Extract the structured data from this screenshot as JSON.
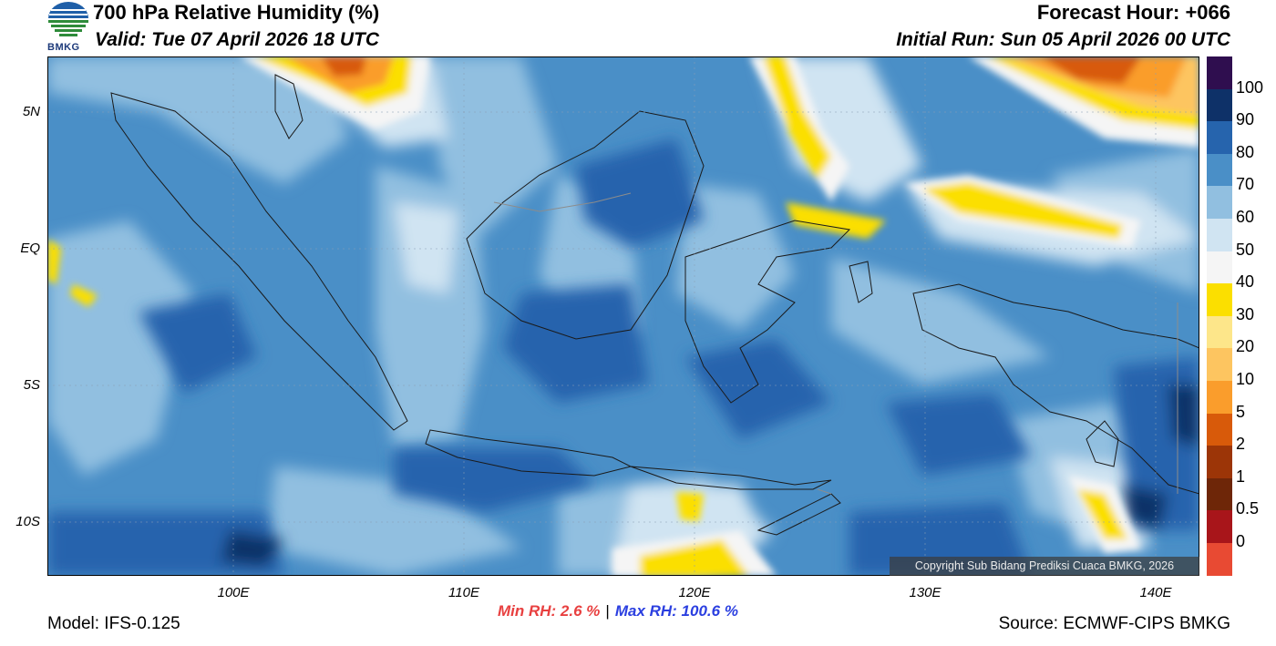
{
  "header": {
    "title": "700 hPa Relative Humidity (%)",
    "valid": "Valid: Tue 07 April 2026 18 UTC",
    "forecast_hour": "Forecast Hour: +066",
    "initial_run": "Initial Run: Sun 05 April 2026 00 UTC",
    "logo_text": "BMKG"
  },
  "map": {
    "lat_labels": [
      "5N",
      "EQ",
      "5S",
      "10S"
    ],
    "lon_labels": [
      "100E",
      "110E",
      "120E",
      "130E",
      "140E"
    ],
    "copyright": "Copyright Sub Bidang Prediksi Cuaca BMKG, 2026",
    "ocean_base_color": "#4a8fc7"
  },
  "colorbar": {
    "labels": [
      "100",
      "90",
      "80",
      "70",
      "60",
      "50",
      "40",
      "30",
      "20",
      "10",
      "5",
      "2",
      "1",
      "0.5",
      "0"
    ],
    "colors": [
      "#2f0e4f",
      "#0e3168",
      "#2664ad",
      "#4a8fc7",
      "#91bfe0",
      "#d0e4f2",
      "#f5f5f5",
      "#fbdf00",
      "#fde68a",
      "#fdc560",
      "#fa9d2c",
      "#d85a0a",
      "#9c3507",
      "#6e2608",
      "#a8151a",
      "#e84a33"
    ]
  },
  "stats": {
    "min": "Min RH:   2.6 %",
    "max": "Max RH: 100.6 %"
  },
  "footer": {
    "model": "Model: IFS-0.125",
    "source": "Source: ECMWF-CIPS BMKG"
  }
}
